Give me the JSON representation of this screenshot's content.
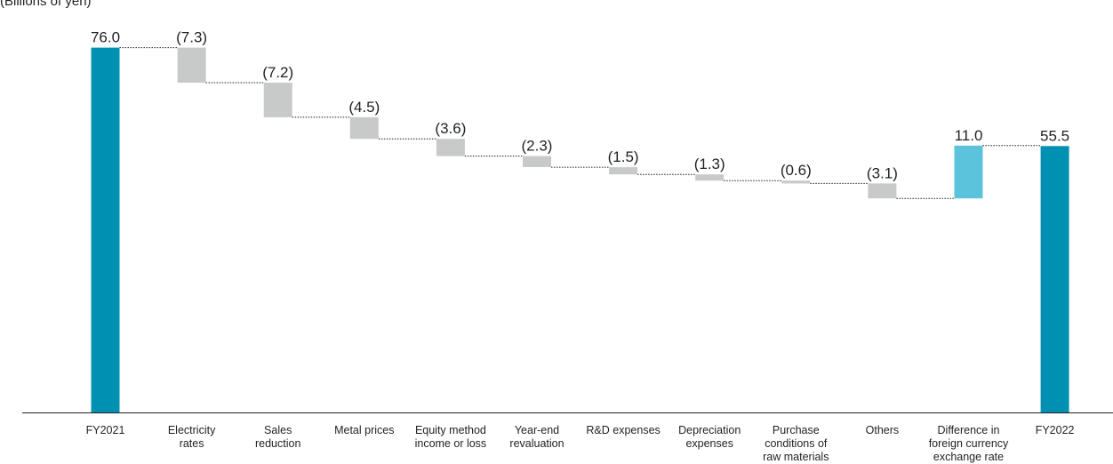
{
  "unit_note": "(Billions of yen)",
  "chart_data": {
    "type": "bar",
    "subtype": "waterfall",
    "title": "",
    "xlabel": "",
    "ylabel": "",
    "ylim": [
      0,
      80
    ],
    "grid": false,
    "categories": [
      "FY2021",
      "Electricity rates",
      "Sales reduction",
      "Metal prices",
      "Equity method income or loss",
      "Year-end revaluation",
      "R&D expenses",
      "Depreciation expenses",
      "Purchase conditions of raw materials",
      "Others",
      "Difference in foreign currency exchange rate",
      "FY2022"
    ],
    "category_lines": [
      [
        "FY2021"
      ],
      [
        "Electricity",
        "rates"
      ],
      [
        "Sales",
        "reduction"
      ],
      [
        "Metal prices"
      ],
      [
        "Equity method",
        "income or loss"
      ],
      [
        "Year-end",
        "revaluation"
      ],
      [
        "R&D expenses"
      ],
      [
        "Depreciation",
        "expenses"
      ],
      [
        "Purchase",
        "conditions of",
        "raw materials"
      ],
      [
        "Others"
      ],
      [
        "Difference in",
        "foreign currency",
        "exchange rate"
      ],
      [
        "FY2022"
      ]
    ],
    "values": [
      76.0,
      -7.3,
      -7.2,
      -4.5,
      -3.6,
      -2.3,
      -1.5,
      -1.3,
      -0.6,
      -3.1,
      11.0,
      55.5
    ],
    "value_labels": [
      "76.0",
      "(7.3)",
      "(7.2)",
      "(4.5)",
      "(3.6)",
      "(2.3)",
      "(1.5)",
      "(1.3)",
      "(0.6)",
      "(3.1)",
      "11.0",
      "55.5"
    ],
    "kinds": [
      "total",
      "delta",
      "delta",
      "delta",
      "delta",
      "delta",
      "delta",
      "delta",
      "delta",
      "delta",
      "delta",
      "total"
    ],
    "colors": {
      "total": "#0091b2",
      "decrease": "#c8c9c9",
      "increase": "#5bc3dc",
      "connector": "#231f20",
      "axis": "#231f20",
      "text": "#231f20"
    }
  }
}
